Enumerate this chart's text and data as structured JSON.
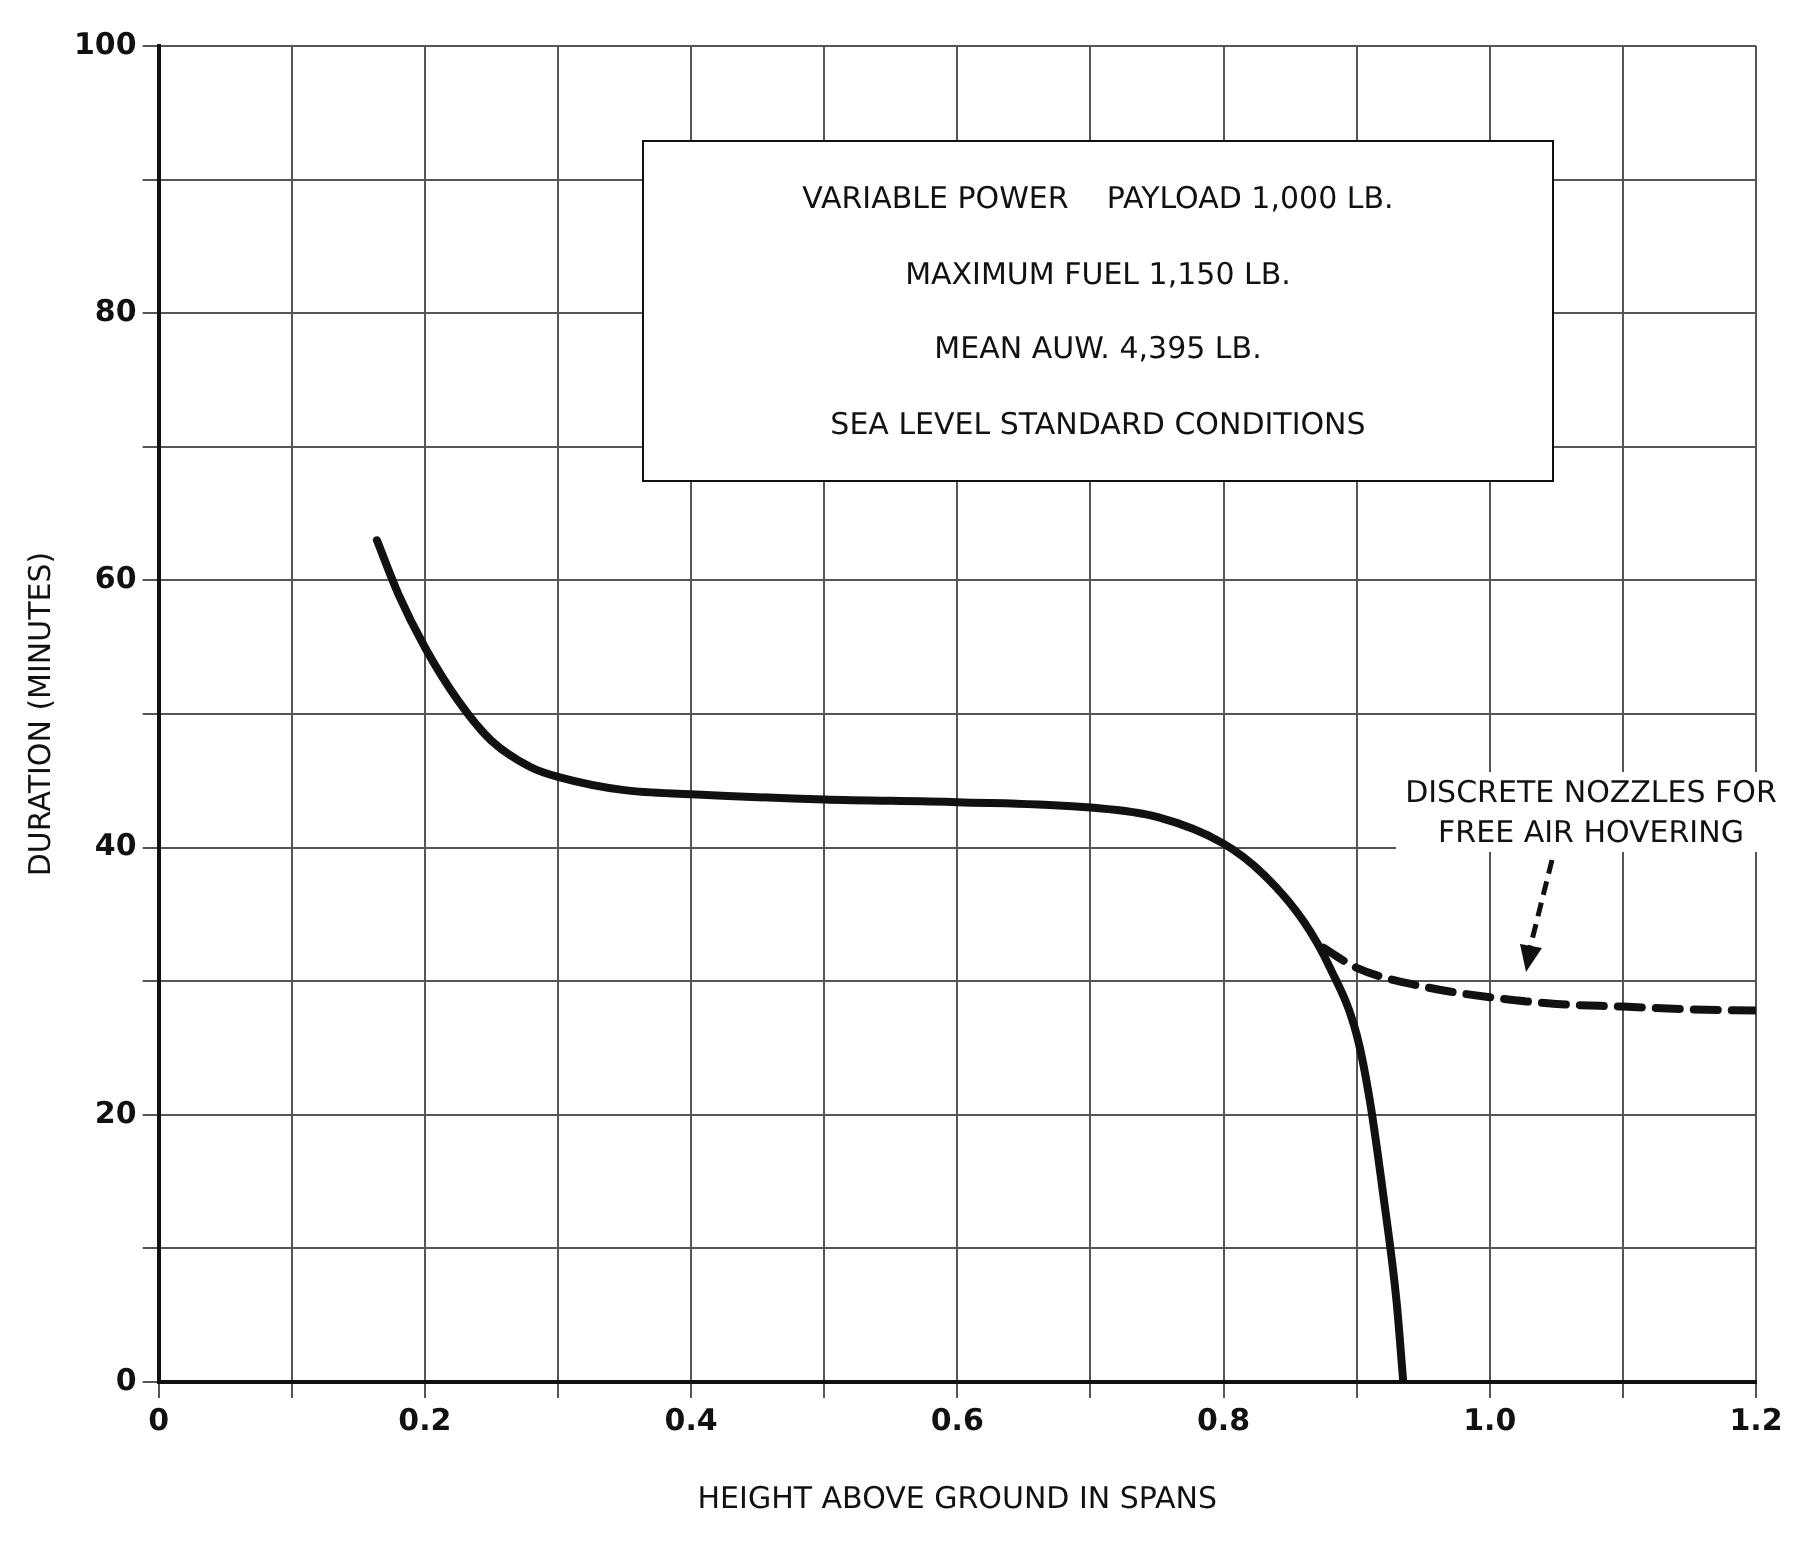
{
  "chart_data": {
    "type": "line",
    "xlabel": "HEIGHT ABOVE GROUND IN SPANS",
    "ylabel": "DURATION (MINUTES)",
    "series": [
      {
        "color": "#111111",
        "line_style": "solid",
        "x": [
          0.164,
          0.18,
          0.2,
          0.225,
          0.25,
          0.28,
          0.3,
          0.35,
          0.4,
          0.5,
          0.6,
          0.7,
          0.75,
          0.8,
          0.83,
          0.86,
          0.88,
          0.9,
          0.91,
          0.92,
          0.93,
          0.935
        ],
        "values": [
          63,
          59,
          55,
          51,
          48,
          46,
          45.3,
          44.3,
          44,
          43.6,
          43.4,
          43,
          42.3,
          40.3,
          38,
          34.5,
          31,
          26,
          21,
          14,
          6,
          0
        ]
      },
      {
        "color": "#111111",
        "line_style": "dashed",
        "x": [
          0.875,
          0.9,
          0.95,
          1.0,
          1.05,
          1.1,
          1.15,
          1.2
        ],
        "values": [
          32.5,
          31,
          29.6,
          28.8,
          28.3,
          28.1,
          27.9,
          27.8
        ]
      }
    ],
    "xlim": [
      0,
      1.2
    ],
    "ylim": [
      0,
      100
    ],
    "xticks": [
      0,
      {
        "value": 0.1,
        "label": null
      },
      0.2,
      {
        "value": 0.3,
        "label": null
      },
      0.4,
      {
        "value": 0.5,
        "label": null
      },
      0.6,
      {
        "value": 0.7,
        "label": null
      },
      0.8,
      {
        "value": 0.9,
        "label": null
      },
      {
        "value": 1,
        "label": "1.0"
      },
      {
        "value": 1.1,
        "label": null
      },
      1.2
    ],
    "yticks": [
      0,
      {
        "value": 10,
        "label": null
      },
      20,
      {
        "value": 30,
        "label": null
      },
      40,
      {
        "value": 50,
        "label": null
      },
      60,
      {
        "value": 70,
        "label": null
      },
      80,
      {
        "value": 90,
        "label": null
      },
      100
    ],
    "grid": true,
    "legend": false,
    "marker": "none",
    "annotations": [
      "VARIABLE POWER    PAYLOAD 1,000 LB.",
      "MAXIMUM FUEL 1,150 LB.",
      "MEAN AUW. 4,395 LB.",
      "SEA LEVEL STANDARD CONDITIONS",
      "DISCRETE NOZZLES FOR\nFREE AIR HOVERING"
    ]
  }
}
